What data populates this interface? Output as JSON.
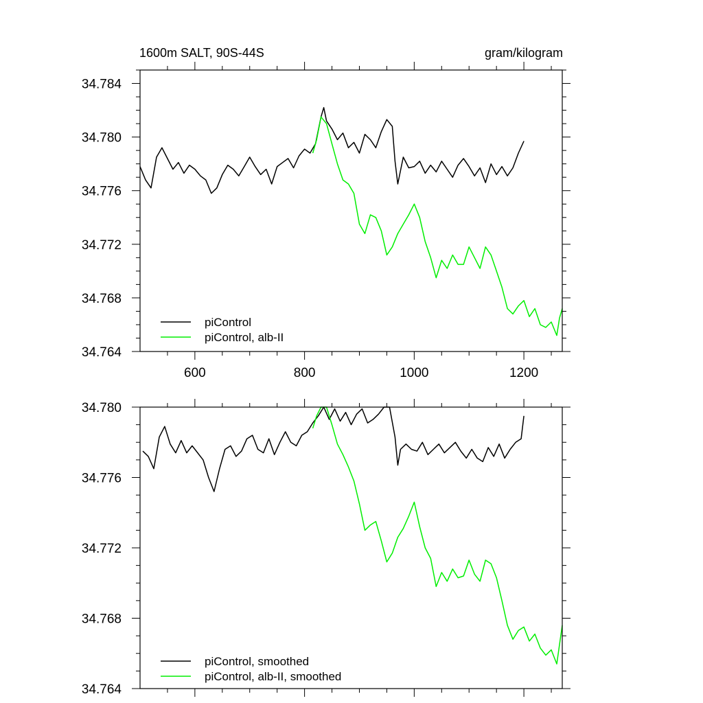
{
  "chart_data": [
    {
      "type": "line",
      "title_left": "1600m SALT, 90S-44S",
      "title_right": "gram/kilogram",
      "xlim": [
        500,
        1270
      ],
      "ylim": [
        34.764,
        34.785
      ],
      "x_ticks": [
        "600",
        "800",
        "1000",
        "1200"
      ],
      "y_ticks": [
        "34.764",
        "34.768",
        "34.772",
        "34.776",
        "34.780",
        "34.784"
      ],
      "series": [
        {
          "name": "piControl",
          "color": "#000000",
          "x": [
            500,
            510,
            520,
            530,
            540,
            550,
            560,
            570,
            580,
            590,
            600,
            610,
            620,
            630,
            640,
            650,
            660,
            670,
            680,
            690,
            700,
            710,
            720,
            730,
            740,
            750,
            760,
            770,
            780,
            790,
            800,
            810,
            820,
            830,
            835,
            840,
            850,
            860,
            870,
            880,
            890,
            900,
            910,
            920,
            930,
            940,
            950,
            960,
            965,
            970,
            980,
            990,
            1000,
            1010,
            1020,
            1030,
            1040,
            1050,
            1060,
            1070,
            1080,
            1090,
            1100,
            1110,
            1120,
            1130,
            1140,
            1150,
            1160,
            1170,
            1180,
            1190,
            1200
          ],
          "values": [
            34.7778,
            34.7768,
            34.7762,
            34.7785,
            34.7792,
            34.7784,
            34.7776,
            34.7781,
            34.7773,
            34.7779,
            34.7776,
            34.7771,
            34.7768,
            34.7758,
            34.7762,
            34.7772,
            34.7779,
            34.7776,
            34.7771,
            34.7778,
            34.7785,
            34.7778,
            34.7772,
            34.7776,
            34.7765,
            34.7778,
            34.7781,
            34.7784,
            34.7777,
            34.7786,
            34.7791,
            34.7788,
            34.7795,
            34.7815,
            34.7822,
            34.7812,
            34.7806,
            34.7798,
            34.7803,
            34.7792,
            34.7796,
            34.7788,
            34.7802,
            34.7798,
            34.7792,
            34.7804,
            34.7813,
            34.7808,
            34.7782,
            34.7765,
            34.7785,
            34.7777,
            34.7778,
            34.7782,
            34.7773,
            34.7779,
            34.7774,
            34.7782,
            34.7776,
            34.777,
            34.7779,
            34.7784,
            34.7778,
            34.7771,
            34.7777,
            34.7766,
            34.778,
            34.7772,
            34.7778,
            34.7771,
            34.7777,
            34.7788,
            34.7797
          ]
        },
        {
          "name": "piControl, alb-II",
          "color": "#00ee00",
          "x": [
            815,
            822,
            830,
            840,
            850,
            860,
            870,
            880,
            890,
            900,
            910,
            920,
            930,
            940,
            950,
            960,
            970,
            980,
            990,
            1000,
            1010,
            1020,
            1030,
            1040,
            1050,
            1060,
            1070,
            1080,
            1090,
            1100,
            1110,
            1120,
            1130,
            1140,
            1150,
            1160,
            1170,
            1180,
            1190,
            1200,
            1210,
            1220,
            1230,
            1240,
            1250,
            1260,
            1265,
            1270
          ],
          "values": [
            34.7788,
            34.7798,
            34.7815,
            34.781,
            34.7795,
            34.778,
            34.7768,
            34.7765,
            34.7758,
            34.7735,
            34.7728,
            34.7742,
            34.774,
            34.773,
            34.7712,
            34.7718,
            34.7728,
            34.7735,
            34.7742,
            34.775,
            34.774,
            34.7722,
            34.771,
            34.7695,
            34.7708,
            34.7702,
            34.7712,
            34.7705,
            34.7705,
            34.7718,
            34.771,
            34.7702,
            34.7718,
            34.7712,
            34.77,
            34.7688,
            34.7672,
            34.7668,
            34.7674,
            34.7678,
            34.7666,
            34.7672,
            34.766,
            34.7658,
            34.7662,
            34.7652,
            34.7665,
            34.7672
          ]
        }
      ],
      "legend": [
        "piControl",
        "piControl, alb-II"
      ],
      "legend_position": "bottom-left"
    },
    {
      "type": "line",
      "xlim": [
        500,
        1270
      ],
      "ylim": [
        34.764,
        34.78
      ],
      "y_ticks": [
        "34.764",
        "34.768",
        "34.772",
        "34.776",
        "34.780"
      ],
      "series": [
        {
          "name": "piControl, smoothed",
          "color": "#000000",
          "x": [
            505,
            515,
            525,
            535,
            545,
            555,
            565,
            575,
            585,
            595,
            605,
            615,
            625,
            635,
            645,
            655,
            665,
            675,
            685,
            695,
            705,
            715,
            725,
            735,
            745,
            755,
            765,
            775,
            785,
            795,
            805,
            815,
            825,
            835,
            845,
            855,
            865,
            875,
            885,
            895,
            905,
            915,
            925,
            935,
            945,
            955,
            965,
            970,
            975,
            985,
            995,
            1005,
            1015,
            1025,
            1035,
            1045,
            1055,
            1065,
            1075,
            1085,
            1095,
            1105,
            1115,
            1125,
            1135,
            1145,
            1155,
            1165,
            1175,
            1185,
            1195,
            1200
          ],
          "values": [
            34.7775,
            34.7772,
            34.7765,
            34.7783,
            34.7789,
            34.7779,
            34.7774,
            34.7781,
            34.7774,
            34.7778,
            34.7774,
            34.777,
            34.776,
            34.7752,
            34.7765,
            34.7776,
            34.7778,
            34.7772,
            34.7775,
            34.7782,
            34.7784,
            34.7776,
            34.7774,
            34.7782,
            34.7773,
            34.778,
            34.7786,
            34.778,
            34.7778,
            34.7784,
            34.7786,
            34.7791,
            34.7795,
            34.7801,
            34.7793,
            34.7799,
            34.7792,
            34.7797,
            34.779,
            34.7796,
            34.7799,
            34.7791,
            34.7793,
            34.7796,
            34.7804,
            34.7808,
            34.7783,
            34.7767,
            34.7776,
            34.7779,
            34.7776,
            34.7775,
            34.778,
            34.7773,
            34.7776,
            34.7779,
            34.7774,
            34.7777,
            34.778,
            34.7775,
            34.7771,
            34.7776,
            34.7771,
            34.7769,
            34.7777,
            34.7772,
            34.7779,
            34.7771,
            34.7776,
            34.778,
            34.7782,
            34.7795
          ]
        },
        {
          "name": "piControl, alb-II, smoothed",
          "color": "#00ee00",
          "x": [
            815,
            822,
            830,
            840,
            850,
            860,
            870,
            880,
            890,
            900,
            910,
            920,
            930,
            940,
            950,
            960,
            970,
            980,
            990,
            1000,
            1010,
            1020,
            1030,
            1040,
            1050,
            1060,
            1070,
            1080,
            1090,
            1100,
            1110,
            1120,
            1130,
            1140,
            1150,
            1160,
            1170,
            1180,
            1190,
            1200,
            1210,
            1220,
            1230,
            1240,
            1250,
            1260,
            1265,
            1270
          ],
          "values": [
            34.7788,
            34.7795,
            34.7808,
            34.78,
            34.779,
            34.7779,
            34.7773,
            34.7766,
            34.7758,
            34.7745,
            34.773,
            34.7733,
            34.7735,
            34.7724,
            34.7712,
            34.7717,
            34.7726,
            34.7731,
            34.7738,
            34.7746,
            34.7732,
            34.772,
            34.7714,
            34.7698,
            34.7706,
            34.7701,
            34.7708,
            34.7703,
            34.7704,
            34.7713,
            34.7705,
            34.7701,
            34.7713,
            34.7711,
            34.7703,
            34.769,
            34.7676,
            34.7668,
            34.7673,
            34.7675,
            34.7667,
            34.7671,
            34.7663,
            34.7659,
            34.7662,
            34.7654,
            34.7665,
            34.7676
          ]
        }
      ],
      "legend": [
        "piControl, smoothed",
        "piControl, alb-II, smoothed"
      ],
      "legend_position": "bottom-left"
    }
  ]
}
